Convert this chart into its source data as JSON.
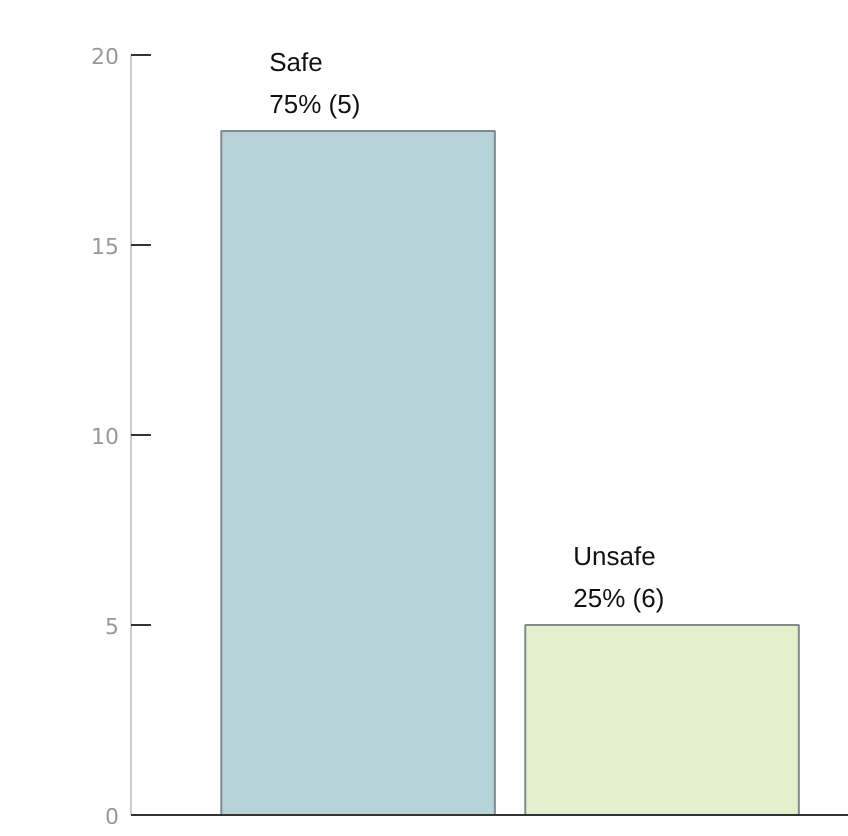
{
  "chart_data": {
    "type": "bar",
    "categories": [
      "Safe",
      "Unsafe"
    ],
    "values": [
      18,
      5
    ],
    "colors": [
      "#b5d3d8",
      "#e3efcd"
    ],
    "annotations": [
      {
        "text": "75% (5)",
        "x": "Safe",
        "y": 18
      },
      {
        "text": "25% (6)",
        "x": "Unsafe",
        "y": 5
      }
    ],
    "ylim": [
      0,
      20
    ],
    "yticks": [
      0,
      5,
      10,
      15,
      20
    ],
    "grid": false,
    "legend": false
  }
}
